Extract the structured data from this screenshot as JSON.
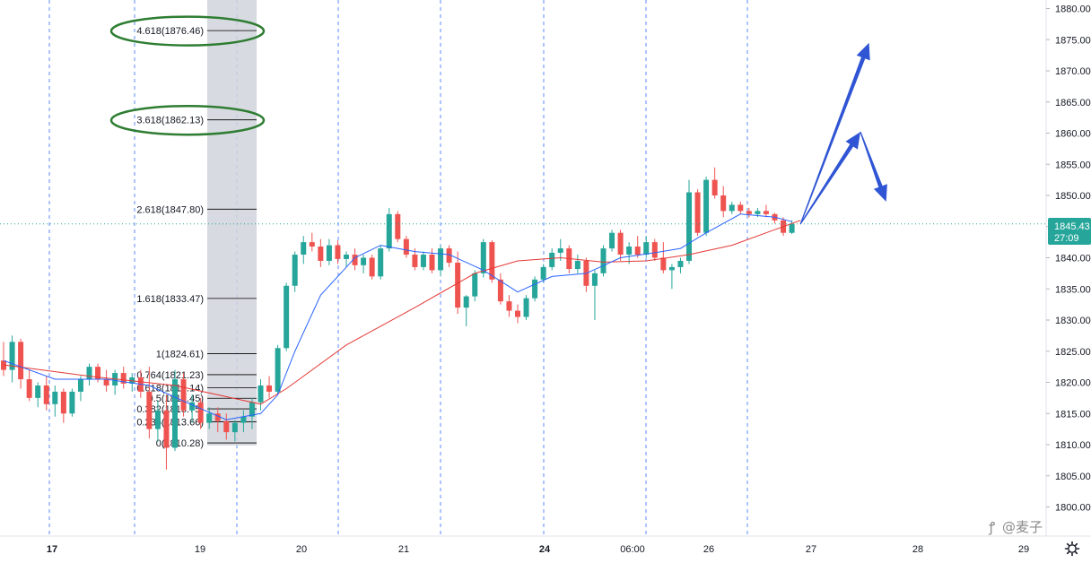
{
  "chart_data": {
    "type": "candlestick",
    "y_axis": {
      "ticks": [
        "1880.00",
        "1875.00",
        "1870.00",
        "1865.00",
        "1860.00",
        "1855.00",
        "1850.00",
        "1845.00",
        "1840.00",
        "1835.00",
        "1830.00",
        "1825.00",
        "1820.00",
        "1815.00",
        "1810.00",
        "1805.00",
        "1800.00"
      ],
      "range": [
        1798,
        1881
      ]
    },
    "x_axis": {
      "labels": [
        {
          "text": "17",
          "bold": true
        },
        {
          "text": "19",
          "bold": false
        },
        {
          "text": "20",
          "bold": false
        },
        {
          "text": "21",
          "bold": false
        },
        {
          "text": "24",
          "bold": true
        },
        {
          "text": "06:00",
          "bold": false
        },
        {
          "text": "26",
          "bold": false
        },
        {
          "text": "27",
          "bold": false
        },
        {
          "text": "28",
          "bold": false
        },
        {
          "text": "29",
          "bold": false
        }
      ]
    },
    "current_price": {
      "value": "1845.43",
      "countdown": "27:09",
      "color": "#26a69a"
    },
    "fib_levels": [
      {
        "label": "4.618(1876.46)",
        "price": 1876.46,
        "circled": true
      },
      {
        "label": "3.618(1862.13)",
        "price": 1862.13,
        "circled": true
      },
      {
        "label": "2.618(1847.80)",
        "price": 1847.8
      },
      {
        "label": "1.618(1833.47)",
        "price": 1833.47
      },
      {
        "label": "1(1824.61)",
        "price": 1824.61
      },
      {
        "label": "0.764(1821.23)",
        "price": 1821.23
      },
      {
        "label": "0.618(1819.14)",
        "price": 1819.14
      },
      {
        "label": "0.5(1817.45)",
        "price": 1817.45
      },
      {
        "label": "0.382(1815.75)",
        "price": 1815.75
      },
      {
        "label": "0.236(1813.66)",
        "price": 1813.66
      },
      {
        "label": "0(1810.28)",
        "price": 1810.28
      }
    ],
    "candles": [
      [
        1823.5,
        1826.5,
        1821,
        1822
      ],
      [
        1822,
        1827.5,
        1820,
        1826.5
      ],
      [
        1826.5,
        1827,
        1819,
        1820.5
      ],
      [
        1820.5,
        1822,
        1817,
        1817.5
      ],
      [
        1817.5,
        1820,
        1816,
        1819.5
      ],
      [
        1819.5,
        1821,
        1815.5,
        1816.5
      ],
      [
        1816.5,
        1819.5,
        1814.5,
        1818.5
      ],
      [
        1818.5,
        1819,
        1813.5,
        1815
      ],
      [
        1815,
        1819,
        1814.5,
        1818.5
      ],
      [
        1818.5,
        1821,
        1817,
        1820.5
      ],
      [
        1820.5,
        1823,
        1819.5,
        1822.5
      ],
      [
        1822.5,
        1823,
        1820,
        1820.5
      ],
      [
        1820.5,
        1822,
        1818.5,
        1819.5
      ],
      [
        1819.5,
        1822,
        1818,
        1821.5
      ],
      [
        1821.5,
        1822.5,
        1819,
        1819.8
      ],
      [
        1819.8,
        1821.5,
        1818.5,
        1820.8
      ],
      [
        1820.8,
        1822,
        1817.5,
        1818.5
      ],
      [
        1818.5,
        1822.5,
        1811,
        1812.5
      ],
      [
        1812.5,
        1817,
        1810.5,
        1815.5
      ],
      [
        1815.5,
        1818,
        1806,
        1809.5
      ],
      [
        1809.5,
        1822,
        1809,
        1820.5
      ],
      [
        1820.5,
        1821.5,
        1814.5,
        1815.5
      ],
      [
        1815.5,
        1818,
        1813.5,
        1816.8
      ],
      [
        1816.8,
        1817.5,
        1812.5,
        1813.5
      ],
      [
        1813.5,
        1816,
        1812.5,
        1815
      ],
      [
        1815,
        1816,
        1812,
        1813.8
      ],
      [
        1813.8,
        1815,
        1810.8,
        1812
      ],
      [
        1812,
        1814,
        1810.5,
        1813.5
      ],
      [
        1813.5,
        1815.5,
        1812,
        1814.5
      ],
      [
        1814.5,
        1817.5,
        1812.5,
        1816.8
      ],
      [
        1816.8,
        1820.5,
        1815.5,
        1819.5
      ],
      [
        1819.5,
        1821,
        1817.5,
        1818.5
      ],
      [
        1818.5,
        1826,
        1818,
        1825.5
      ],
      [
        1825.5,
        1836,
        1825,
        1835.5
      ],
      [
        1835.5,
        1841,
        1834.5,
        1840.5
      ],
      [
        1840.5,
        1843.5,
        1839,
        1842.5
      ],
      [
        1842.5,
        1844,
        1841,
        1841.8
      ],
      [
        1841.8,
        1843,
        1838.5,
        1839.5
      ],
      [
        1839.5,
        1843,
        1838.8,
        1842
      ],
      [
        1842,
        1842.8,
        1839,
        1839.8
      ],
      [
        1839.8,
        1841,
        1838.5,
        1840.5
      ],
      [
        1840.5,
        1841.5,
        1838,
        1838.8
      ],
      [
        1838.8,
        1840.5,
        1837.5,
        1840
      ],
      [
        1840,
        1840.5,
        1836.5,
        1837
      ],
      [
        1837,
        1842,
        1836.5,
        1841.5
      ],
      [
        1841.5,
        1848,
        1841,
        1847
      ],
      [
        1847,
        1847.5,
        1842.5,
        1843
      ],
      [
        1843,
        1843.5,
        1840,
        1840.5
      ],
      [
        1840.5,
        1841.5,
        1838,
        1838.5
      ],
      [
        1838.5,
        1841,
        1838,
        1840.5
      ],
      [
        1840.5,
        1841.5,
        1837.5,
        1838
      ],
      [
        1838,
        1842,
        1837,
        1841.5
      ],
      [
        1841.5,
        1842,
        1838.5,
        1839.2
      ],
      [
        1839.2,
        1841,
        1831,
        1832
      ],
      [
        1832,
        1834,
        1829,
        1833.8
      ],
      [
        1833.8,
        1838,
        1833,
        1837.5
      ],
      [
        1837.5,
        1843,
        1836.8,
        1842.5
      ],
      [
        1842.5,
        1842.8,
        1836,
        1836.5
      ],
      [
        1836.5,
        1837.5,
        1832.5,
        1833
      ],
      [
        1833,
        1834,
        1830.5,
        1831.5
      ],
      [
        1831.5,
        1832.5,
        1829.5,
        1830.5
      ],
      [
        1830.5,
        1834,
        1830,
        1833.5
      ],
      [
        1833.5,
        1837,
        1833,
        1836.5
      ],
      [
        1836.5,
        1839,
        1836,
        1838.5
      ],
      [
        1838.5,
        1841.5,
        1838,
        1840.8
      ],
      [
        1840.8,
        1843,
        1839.5,
        1841.5
      ],
      [
        1841.5,
        1842,
        1837.5,
        1838.2
      ],
      [
        1838.2,
        1840.5,
        1837.5,
        1839.5
      ],
      [
        1839.5,
        1840,
        1834.5,
        1835.5
      ],
      [
        1835.5,
        1838,
        1830,
        1837.5
      ],
      [
        1837.5,
        1842,
        1837,
        1841.5
      ],
      [
        1841.5,
        1844.5,
        1841,
        1844
      ],
      [
        1844,
        1844.5,
        1839.5,
        1840.5
      ],
      [
        1840.5,
        1842.5,
        1839,
        1841.8
      ],
      [
        1841.8,
        1843.5,
        1840,
        1840.5
      ],
      [
        1840.5,
        1843.5,
        1840,
        1842.5
      ],
      [
        1842.5,
        1843,
        1839.5,
        1840
      ],
      [
        1840,
        1842.5,
        1837.5,
        1838
      ],
      [
        1838,
        1839,
        1835,
        1838.5
      ],
      [
        1838.5,
        1840,
        1837.5,
        1839.5
      ],
      [
        1839.5,
        1852.5,
        1839,
        1850.5
      ],
      [
        1850.5,
        1851,
        1843.5,
        1844
      ],
      [
        1844,
        1853,
        1843.5,
        1852.5
      ],
      [
        1852.5,
        1854.5,
        1849.5,
        1850
      ],
      [
        1850,
        1851.5,
        1846.5,
        1847.5
      ],
      [
        1847.5,
        1849,
        1847,
        1848.5
      ],
      [
        1848.5,
        1849,
        1847,
        1847.5
      ],
      [
        1847.5,
        1848,
        1846.5,
        1847
      ],
      [
        1847,
        1848,
        1846.5,
        1847.5
      ],
      [
        1847.5,
        1848.5,
        1846.5,
        1847
      ],
      [
        1847,
        1847.2,
        1845.5,
        1846
      ],
      [
        1846,
        1846.5,
        1843.5,
        1844
      ],
      [
        1844,
        1846,
        1843.8,
        1845.43
      ]
    ],
    "ma_fast": [
      [
        0,
        1823.5
      ],
      [
        6,
        1820.5
      ],
      [
        12,
        1820.5
      ],
      [
        17,
        1819.5
      ],
      [
        21,
        1817
      ],
      [
        26,
        1814
      ],
      [
        30,
        1815
      ],
      [
        32,
        1818
      ],
      [
        34,
        1825
      ],
      [
        37,
        1834
      ],
      [
        41,
        1840
      ],
      [
        44,
        1842
      ],
      [
        48,
        1841
      ],
      [
        52,
        1840.5
      ],
      [
        56,
        1838
      ],
      [
        60,
        1834.5
      ],
      [
        64,
        1837
      ],
      [
        68,
        1837.5
      ],
      [
        72,
        1840
      ],
      [
        76,
        1840.8
      ],
      [
        79,
        1841.5
      ],
      [
        82,
        1844
      ],
      [
        86,
        1847
      ],
      [
        90,
        1846.5
      ],
      [
        92,
        1845.8
      ]
    ],
    "ma_slow": [
      [
        0,
        1822.8
      ],
      [
        10,
        1821
      ],
      [
        20,
        1819.5
      ],
      [
        30,
        1816.5
      ],
      [
        33,
        1819
      ],
      [
        40,
        1826
      ],
      [
        48,
        1832
      ],
      [
        55,
        1837.5
      ],
      [
        60,
        1839.5
      ],
      [
        65,
        1840
      ],
      [
        70,
        1839.3
      ],
      [
        75,
        1839.5
      ],
      [
        80,
        1840.5
      ],
      [
        85,
        1842
      ],
      [
        90,
        1844.5
      ],
      [
        93,
        1846
      ]
    ],
    "projection_arrows": [
      {
        "from": [
          93,
          1845.4
        ],
        "to": [
          101,
          1874.5
        ]
      },
      {
        "from": [
          93,
          1845.4
        ],
        "to": [
          100,
          1860.2
        ]
      },
      {
        "from": [
          100,
          1860.2
        ],
        "to": [
          103,
          1849
        ]
      }
    ],
    "colors": {
      "up": "#26a69a",
      "down": "#ef5350",
      "ma_fast": "#2962ff",
      "ma_slow": "#e53935",
      "fib": "#000000",
      "ellipse": "#2e7d32",
      "arrow": "#2f55d4",
      "vgrid": "#2962ff"
    },
    "watermark": "@麦子"
  }
}
